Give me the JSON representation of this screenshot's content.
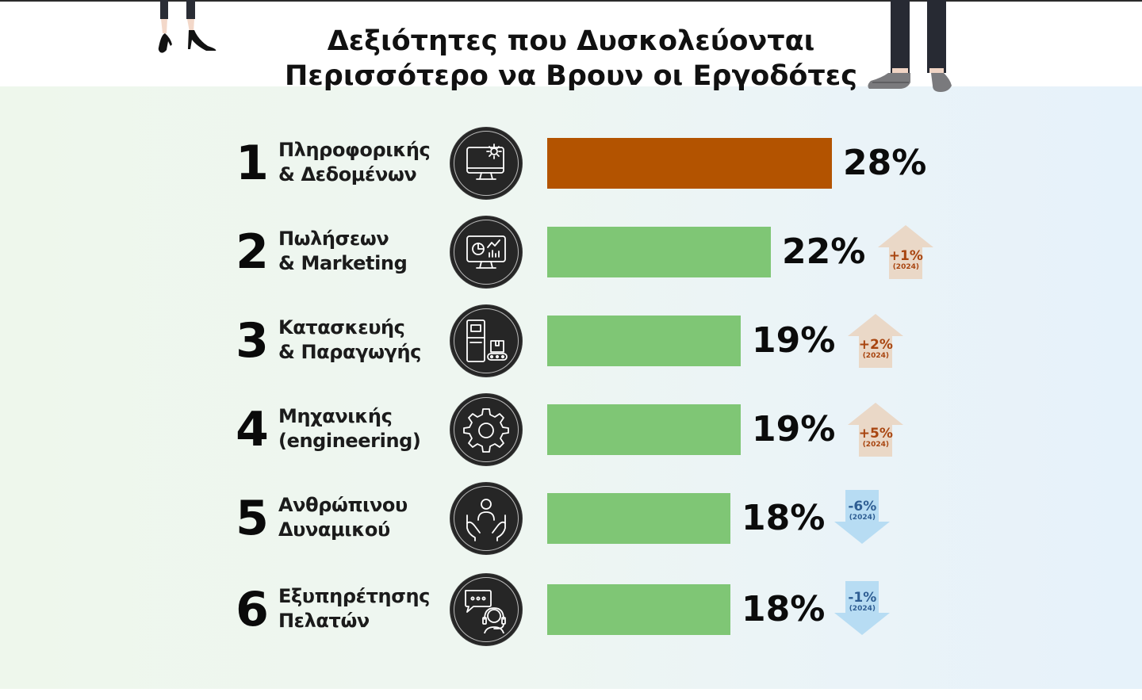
{
  "title": {
    "line1": "Δεξιότητες που Δυσκολεύονται",
    "line2": "Περισσότερο να Βρουν οι Εργοδότες"
  },
  "colors": {
    "top_bar": "#b35300",
    "bar": "#7fc675",
    "up_badge_bg": "#ead8c7",
    "up_badge_text": "#a84510",
    "down_badge_bg": "#b7dcf3",
    "down_badge_text": "#2f5e93"
  },
  "chart_data": {
    "type": "bar",
    "orientation": "horizontal",
    "categories": [
      "Πληροφορικής & Δεδομένων",
      "Πωλήσεων & Marketing",
      "Κατασκευής & Παραγωγής",
      "Μηχανικής (engineering)",
      "Ανθρώπινου Δυναμικού",
      "Εξυπηρέτησης Πελατών"
    ],
    "values": [
      28,
      22,
      19,
      19,
      18,
      18
    ],
    "unit": "%",
    "xlim": [
      0,
      28
    ],
    "rows": [
      {
        "rank": "1",
        "line1": "Πληροφορικής",
        "line2": "& Δεδομένων",
        "value": 28,
        "value_label": "28%",
        "icon": "computer-gear-icon",
        "highlight": true,
        "change": null
      },
      {
        "rank": "2",
        "line1": "Πωλήσεων",
        "line2": "& Marketing",
        "value": 22,
        "value_label": "22%",
        "icon": "analytics-monitor-icon",
        "highlight": false,
        "change": {
          "label": "+1%",
          "value": 1,
          "year": "(2024)",
          "direction": "up"
        }
      },
      {
        "rank": "3",
        "line1": "Κατασκευής",
        "line2": "& Παραγωγής",
        "value": 19,
        "value_label": "19%",
        "icon": "factory-machine-icon",
        "highlight": false,
        "change": {
          "label": "+2%",
          "value": 2,
          "year": "(2024)",
          "direction": "up"
        }
      },
      {
        "rank": "4",
        "line1": "Μηχανικής",
        "line2": "(engineering)",
        "value": 19,
        "value_label": "19%",
        "icon": "gear-icon",
        "highlight": false,
        "change": {
          "label": "+5%",
          "value": 5,
          "year": "(2024)",
          "direction": "up"
        }
      },
      {
        "rank": "5",
        "line1": "Ανθρώπινου",
        "line2": "Δυναμικού",
        "value": 18,
        "value_label": "18%",
        "icon": "person-hands-icon",
        "highlight": false,
        "change": {
          "label": "-6%",
          "value": -6,
          "year": "(2024)",
          "direction": "down"
        }
      },
      {
        "rank": "6",
        "line1": "Εξυπηρέτησης",
        "line2": "Πελατών",
        "value": 18,
        "value_label": "18%",
        "icon": "headset-chat-icon",
        "highlight": false,
        "change": {
          "label": "-1%",
          "value": -1,
          "year": "(2024)",
          "direction": "down"
        }
      }
    ]
  }
}
